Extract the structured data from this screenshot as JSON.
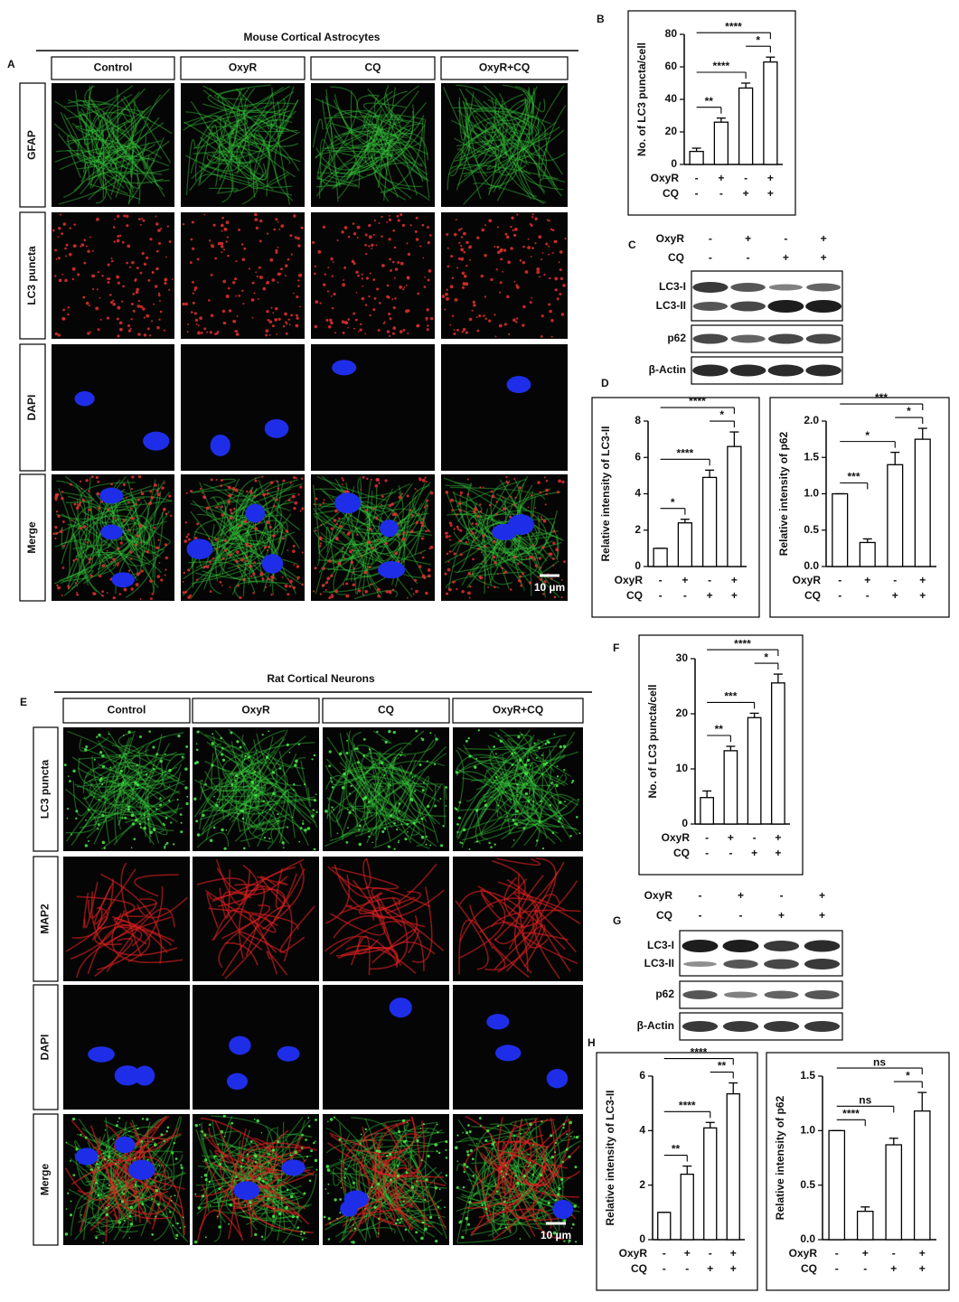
{
  "figure": {
    "A": {
      "label": "A",
      "title": "Mouse Cortical Astrocytes",
      "columns": [
        "Control",
        "OxyR",
        "CQ",
        "OxyR+CQ"
      ],
      "rows": [
        "GFAP",
        "LC3 puncta",
        "DAPI",
        "Merge"
      ],
      "scale_bar": "10 µm"
    },
    "E": {
      "label": "E",
      "title": "Rat Cortical Neurons",
      "columns": [
        "Control",
        "OxyR",
        "CQ",
        "OxyR+CQ"
      ],
      "rows": [
        "LC3 puncta",
        "MAP2",
        "DAPI",
        "Merge"
      ],
      "scale_bar": "10 µm"
    }
  },
  "blots": [
    {
      "panel": "C",
      "conditions": [
        {
          "name": "OxyR",
          "signs": [
            "-",
            "+",
            "-",
            "+"
          ]
        },
        {
          "name": "CQ",
          "signs": [
            "-",
            "-",
            "+",
            "+"
          ]
        }
      ],
      "rows": [
        "LC3-I",
        "LC3-II",
        "p62",
        "β-Actin"
      ]
    },
    {
      "panel": "G",
      "conditions": [
        {
          "name": "OxyR",
          "signs": [
            "-",
            "+",
            "-",
            "+"
          ]
        },
        {
          "name": "CQ",
          "signs": [
            "-",
            "-",
            "+",
            "+"
          ]
        }
      ],
      "rows": [
        "LC3-I",
        "LC3-II",
        "p62",
        "β-Actin"
      ]
    }
  ],
  "chart_data": [
    {
      "type": "bar",
      "panel": "B",
      "y_label": "No. of LC3 puncta/cell",
      "color": "#ffffff",
      "conditions": [
        {
          "name": "OxyR",
          "signs": [
            "-",
            "+",
            "-",
            "+"
          ]
        },
        {
          "name": "CQ",
          "signs": [
            "-",
            "-",
            "+",
            "+"
          ]
        }
      ],
      "values": [
        8,
        26,
        47,
        63
      ],
      "errors": [
        2,
        2.5,
        3,
        3
      ],
      "ylim": [
        0,
        80
      ],
      "yticks": [
        0,
        20,
        40,
        60,
        80
      ],
      "annotations": [
        "**",
        "****",
        "*",
        "****"
      ]
    },
    {
      "type": "bar",
      "panel": "D",
      "y_label": "Relative intensity of LC3-II",
      "color": "#ffffff",
      "conditions": [
        {
          "name": "OxyR",
          "signs": [
            "-",
            "+",
            "-",
            "+"
          ]
        },
        {
          "name": "CQ",
          "signs": [
            "-",
            "-",
            "+",
            "+"
          ]
        }
      ],
      "values": [
        1,
        2.4,
        4.9,
        6.6
      ],
      "errors": [
        0,
        0.2,
        0.4,
        0.8
      ],
      "ylim": [
        0,
        8
      ],
      "yticks": [
        0,
        2,
        4,
        6,
        8
      ],
      "annotations": [
        "*",
        "****",
        "*",
        "****"
      ]
    },
    {
      "type": "bar",
      "y_label": "Relative intensity of p62",
      "color": "#ffffff",
      "conditions": [
        {
          "name": "OxyR",
          "signs": [
            "-",
            "+",
            "-",
            "+"
          ]
        },
        {
          "name": "CQ",
          "signs": [
            "-",
            "-",
            "+",
            "+"
          ]
        }
      ],
      "values": [
        1.0,
        0.33,
        1.4,
        1.75
      ],
      "errors": [
        0,
        0.05,
        0.17,
        0.15
      ],
      "ylim": [
        0,
        2.0
      ],
      "yticks": [
        {
          "value": 0,
          "label": "0.0"
        },
        0.5,
        {
          "value": 1,
          "label": "1.0"
        },
        1.5,
        {
          "value": 2,
          "label": "2.0"
        }
      ],
      "annotations": [
        "***",
        "*",
        "*",
        "***"
      ]
    },
    {
      "type": "bar",
      "panel": "F",
      "y_label": "No. of LC3 puncta/cell",
      "color": "#ffffff",
      "conditions": [
        {
          "name": "OxyR",
          "signs": [
            "-",
            "+",
            "-",
            "+"
          ]
        },
        {
          "name": "CQ",
          "signs": [
            "-",
            "-",
            "+",
            "+"
          ]
        }
      ],
      "values": [
        4.8,
        13.3,
        19.3,
        25.6
      ],
      "errors": [
        1.2,
        0.8,
        0.8,
        1.6
      ],
      "ylim": [
        0,
        30
      ],
      "yticks": [
        0,
        10,
        20,
        30
      ],
      "annotations": [
        "**",
        "***",
        "*",
        "****"
      ]
    },
    {
      "type": "bar",
      "panel": "H",
      "y_label": "Relative intensity of LC3-II",
      "color": "#ffffff",
      "conditions": [
        {
          "name": "OxyR",
          "signs": [
            "-",
            "+",
            "-",
            "+"
          ]
        },
        {
          "name": "CQ",
          "signs": [
            "-",
            "-",
            "+",
            "+"
          ]
        }
      ],
      "values": [
        1,
        2.4,
        4.1,
        5.35
      ],
      "errors": [
        0,
        0.3,
        0.2,
        0.4
      ],
      "ylim": [
        0,
        6
      ],
      "yticks": [
        0,
        2,
        4,
        6
      ],
      "annotations": [
        "**",
        "****",
        "**",
        "****"
      ]
    },
    {
      "type": "bar",
      "y_label": "Relative intensity of p62",
      "color": "#ffffff",
      "conditions": [
        {
          "name": "OxyR",
          "signs": [
            "-",
            "+",
            "-",
            "+"
          ]
        },
        {
          "name": "CQ",
          "signs": [
            "-",
            "-",
            "+",
            "+"
          ]
        }
      ],
      "values": [
        1.0,
        0.26,
        0.87,
        1.18
      ],
      "errors": [
        0,
        0.04,
        0.06,
        0.17
      ],
      "ylim": [
        0,
        1.5
      ],
      "yticks": [
        {
          "value": 0,
          "label": "0.0"
        },
        0.5,
        {
          "value": 1,
          "label": "1.0"
        },
        1.5
      ],
      "annotations": [
        "****",
        "ns",
        "*",
        "ns"
      ]
    }
  ]
}
